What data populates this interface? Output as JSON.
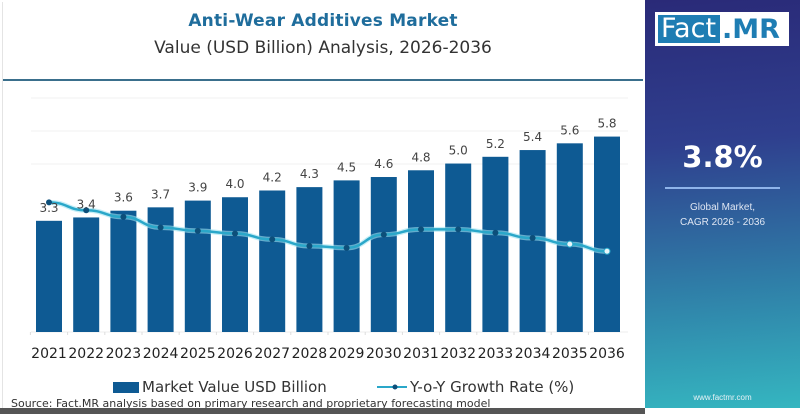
{
  "header": {
    "title": "Anti-Wear Additives Market",
    "subtitle": "Value (USD Billion) Analysis, 2026-2036"
  },
  "sidebar": {
    "logo_left": "Fact",
    "logo_right": ".MR",
    "cagr_value": "3.8%",
    "cagr_label_line1": "Global Market,",
    "cagr_label_line2": "CAGR 2026 - 2036",
    "url": "www.factmr.com"
  },
  "footer": {
    "source": "Source: Fact.MR analysis based on primary research and proprietary forecasting model"
  },
  "colors": {
    "bar": "#0e5a93",
    "line": "#2aa7c9",
    "marker": "#0d4f7a",
    "title": "#1f6d9c"
  },
  "chart_data": {
    "type": "bar",
    "title": "Anti-Wear Additives Market",
    "subtitle": "Value (USD Billion) Analysis, 2026-2036",
    "xlabel": "",
    "ylabel": "",
    "categories": [
      "2021",
      "2022",
      "2023",
      "2024",
      "2025",
      "2026",
      "2027",
      "2028",
      "2029",
      "2030",
      "2031",
      "2032",
      "2033",
      "2034",
      "2035",
      "2036"
    ],
    "ylim": [
      0,
      6.5
    ],
    "grid": true,
    "legend_position": "bottom-center",
    "series": [
      {
        "name": "Market Value USD Billion",
        "type": "bar",
        "values": [
          3.3,
          3.4,
          3.6,
          3.7,
          3.9,
          4.0,
          4.2,
          4.3,
          4.5,
          4.6,
          4.8,
          5.0,
          5.2,
          5.4,
          5.6,
          5.8
        ],
        "labels": [
          "3.3",
          "3.4",
          "3.6",
          "3.7",
          "3.9",
          "4.0",
          "4.2",
          "4.3",
          "4.5",
          "4.6",
          "4.8",
          "5.0",
          "5.2",
          "5.4",
          "5.6",
          "5.8"
        ]
      },
      {
        "name": "Y-o-Y Growth Rate (%)",
        "type": "line",
        "axis": "secondary-hidden",
        "values": [
          4.9,
          4.6,
          4.35,
          3.95,
          3.82,
          3.72,
          3.5,
          3.25,
          3.18,
          3.68,
          3.88,
          3.88,
          3.75,
          3.55,
          3.32,
          3.05
        ],
        "ylim": [
          0,
          8.2
        ]
      }
    ]
  }
}
